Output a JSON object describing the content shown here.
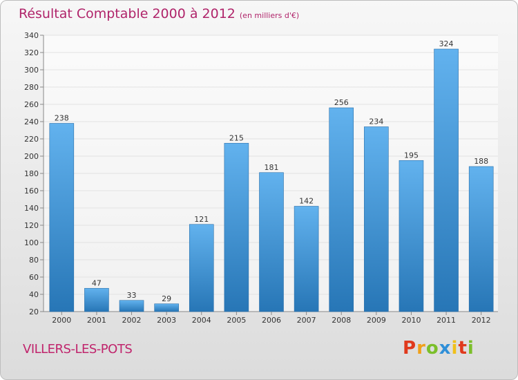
{
  "title": {
    "main": "Résultat Comptable 2000 à 2012",
    "unit": "(en milliers d'€)"
  },
  "location": "VILLERS-LES-POTS",
  "logo": {
    "letters": [
      "P",
      "r",
      "o",
      "x",
      "i",
      "t",
      "i"
    ],
    "colors": [
      "#e0391c",
      "#f0a01a",
      "#7bbf2a",
      "#2f8fd8",
      "#f0c01a",
      "#e0391c",
      "#7bbf2a"
    ]
  },
  "colors": {
    "bar_light": "#62b2ee",
    "bar_dark": "#2776b6",
    "title": "#b0246a",
    "grid": "#e2e2e2"
  },
  "chart_data": {
    "type": "bar",
    "title": "Résultat Comptable 2000 à 2012",
    "subtitle": "(en milliers d'€)",
    "categories": [
      "2000",
      "2001",
      "2002",
      "2003",
      "2004",
      "2005",
      "2006",
      "2007",
      "2008",
      "2009",
      "2010",
      "2011",
      "2012"
    ],
    "values": [
      238,
      47,
      33,
      29,
      121,
      215,
      181,
      142,
      256,
      234,
      195,
      324,
      188
    ],
    "xlabel": "",
    "ylabel": "",
    "ylim": [
      20,
      340
    ],
    "yticks": [
      20,
      40,
      60,
      80,
      100,
      120,
      140,
      160,
      180,
      200,
      220,
      240,
      260,
      280,
      300,
      320,
      340
    ],
    "grid": true,
    "data_labels": true
  }
}
